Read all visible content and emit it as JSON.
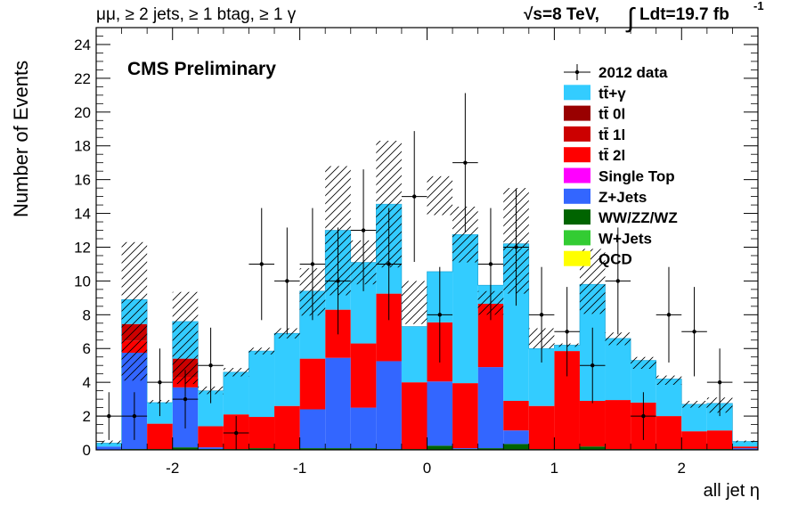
{
  "header": {
    "channel": "μμ, ≥ 2 jets, ≥ 1 btag, ≥ 1 γ",
    "energy": "√s=8 TeV,",
    "lumi_integral": "∫",
    "lumi": "Ldt=19.7 fb",
    "lumi_exp": "-1"
  },
  "cms_label": "CMS Preliminary",
  "chart_data": {
    "type": "bar",
    "stacked": true,
    "xlabel": "all jet η",
    "ylabel": "Number of Events",
    "xlim": [
      -2.6,
      2.6
    ],
    "ylim": [
      0,
      25
    ],
    "x_ticks": [
      -2,
      -1,
      0,
      1,
      2
    ],
    "y_ticks": [
      0,
      2,
      4,
      6,
      8,
      10,
      12,
      14,
      16,
      18,
      20,
      22,
      24
    ],
    "bin_edges": [
      -2.6,
      -2.4,
      -2.2,
      -2.0,
      -1.8,
      -1.6,
      -1.4,
      -1.2,
      -1.0,
      -0.8,
      -0.6,
      -0.4,
      -0.2,
      0.0,
      0.2,
      0.4,
      0.6,
      0.8,
      1.0,
      1.2,
      1.4,
      1.6,
      1.8,
      2.0,
      2.2,
      2.4,
      2.6
    ],
    "series": [
      {
        "name": "WW/ZZ/WZ",
        "color": "#006400",
        "values": [
          0,
          0.05,
          0.05,
          0.15,
          0.05,
          0.05,
          0.1,
          0.05,
          0.1,
          0.1,
          0.1,
          0.05,
          0.05,
          0.25,
          0.05,
          0.1,
          0.35,
          0.05,
          0.05,
          0.2,
          0.05,
          0.05,
          0.05,
          0.05,
          0.05,
          0
        ]
      },
      {
        "name": "Z+Jets",
        "color": "#3366ff",
        "values": [
          0.2,
          5.7,
          0,
          3.55,
          0.1,
          0,
          0,
          0,
          2.3,
          5.35,
          2.4,
          5.2,
          0,
          3.8,
          0.05,
          4.8,
          0.8,
          0,
          0,
          0,
          0,
          0,
          0,
          0,
          0,
          0.1
        ]
      },
      {
        "name": "tt̄ 2l",
        "color": "#ff0000",
        "values": [
          0,
          0.7,
          1.5,
          0.6,
          1.25,
          2.05,
          1.85,
          2.55,
          3.0,
          2.85,
          3.8,
          4.0,
          3.95,
          3.5,
          3.85,
          3.75,
          1.75,
          2.55,
          5.8,
          2.7,
          2.9,
          2.75,
          1.95,
          1.05,
          1.1,
          0.1
        ]
      },
      {
        "name": "tt̄ 1l",
        "color": "#cc0000",
        "values": [
          0,
          1.0,
          0,
          1.1,
          0,
          0,
          0,
          0,
          0,
          0,
          0,
          0,
          0,
          0,
          0,
          0,
          0,
          0,
          0,
          0,
          0,
          0,
          0,
          0,
          0,
          0
        ]
      },
      {
        "name": "tt̄ 0l",
        "color": "#990000",
        "values": [
          0,
          0,
          0,
          0,
          0,
          0,
          0,
          0,
          0,
          0,
          0,
          0,
          0,
          0,
          0,
          0,
          0,
          0,
          0,
          0,
          0,
          0,
          0,
          0,
          0,
          0
        ]
      },
      {
        "name": "tt̄+γ",
        "color": "#33ccff",
        "values": [
          0.2,
          1.45,
          1.25,
          2.2,
          2.1,
          2.5,
          3.9,
          4.3,
          4.0,
          4.7,
          4.8,
          5.3,
          3.3,
          3.0,
          8.8,
          1.1,
          9.3,
          3.4,
          0.35,
          6.9,
          3.65,
          2.5,
          2.2,
          1.6,
          1.6,
          0.3
        ]
      }
    ],
    "data": {
      "name": "2012 data",
      "points": [
        {
          "x": -2.5,
          "y": 2
        },
        {
          "x": -2.3,
          "y": 2
        },
        {
          "x": -2.1,
          "y": 4
        },
        {
          "x": -1.9,
          "y": 3
        },
        {
          "x": -1.7,
          "y": 5
        },
        {
          "x": -1.5,
          "y": 1
        },
        {
          "x": -1.3,
          "y": 11
        },
        {
          "x": -1.1,
          "y": 10
        },
        {
          "x": -0.9,
          "y": 11
        },
        {
          "x": -0.7,
          "y": 10
        },
        {
          "x": -0.5,
          "y": 13
        },
        {
          "x": -0.3,
          "y": 11
        },
        {
          "x": -0.1,
          "y": 15
        },
        {
          "x": 0.1,
          "y": 8
        },
        {
          "x": 0.3,
          "y": 17
        },
        {
          "x": 0.5,
          "y": 11
        },
        {
          "x": 0.7,
          "y": 12
        },
        {
          "x": 0.9,
          "y": 8
        },
        {
          "x": 1.1,
          "y": 7
        },
        {
          "x": 1.3,
          "y": 5
        },
        {
          "x": 1.5,
          "y": 10
        },
        {
          "x": 1.7,
          "y": 2
        },
        {
          "x": 1.9,
          "y": 8
        },
        {
          "x": 2.1,
          "y": 7
        },
        {
          "x": 2.3,
          "y": 4
        }
      ]
    },
    "uncertainty_band": {
      "up": [
        0.55,
        12.3,
        2.95,
        9.35,
        3.75,
        4.85,
        6.05,
        7.2,
        10.75,
        16.8,
        12.4,
        18.3,
        10.0,
        16.2,
        14.4,
        9.4,
        15.5,
        7.2,
        6.3,
        11.9,
        6.95,
        5.5,
        4.4,
        2.9,
        3.1,
        0.55
      ],
      "down": [
        0.35,
        4.1,
        2.75,
        3.9,
        3.3,
        4.35,
        5.65,
        6.6,
        7.95,
        9.15,
        9.8,
        10.8,
        7.45,
        13.9,
        11.1,
        8.0,
        9.25,
        6.0,
        6.1,
        8.05,
        6.2,
        4.8,
        3.85,
        2.5,
        2.2,
        0.45
      ]
    },
    "legend": {
      "placement": "top-right",
      "entries": [
        {
          "label": "2012 data",
          "kind": "marker",
          "color": "#000000"
        },
        {
          "label": "tt̄+γ",
          "kind": "fill",
          "color": "#33ccff"
        },
        {
          "label": "tt̄ 0l",
          "kind": "fill",
          "color": "#990000"
        },
        {
          "label": "tt̄ 1l",
          "kind": "fill",
          "color": "#cc0000"
        },
        {
          "label": "tt̄ 2l",
          "kind": "fill",
          "color": "#ff0000"
        },
        {
          "label": "Single Top",
          "kind": "fill",
          "color": "#ff00ff"
        },
        {
          "label": "Z+Jets",
          "kind": "fill",
          "color": "#3366ff"
        },
        {
          "label": "WW/ZZ/WZ",
          "kind": "fill",
          "color": "#006400"
        },
        {
          "label": "W+Jets",
          "kind": "fill",
          "color": "#33cc33"
        },
        {
          "label": "QCD",
          "kind": "fill",
          "color": "#ffff00"
        }
      ]
    }
  }
}
